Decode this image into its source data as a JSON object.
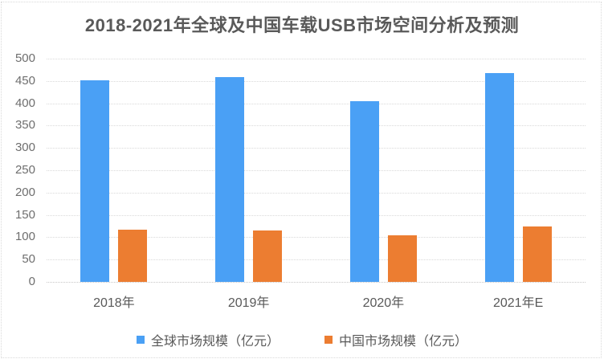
{
  "chart_data": {
    "type": "bar",
    "title": "2018-2021年全球及中国车载USB市场空间分析及预测",
    "categories": [
      "2018年",
      "2019年",
      "2020年",
      "2021年E"
    ],
    "series": [
      {
        "id": "global",
        "name": "全球市场规模（亿元）",
        "color": "#4AA0F5",
        "values": [
          452,
          459,
          405,
          468
        ]
      },
      {
        "id": "china",
        "name": "中国市场规模（亿元）",
        "color": "#EC7D31",
        "values": [
          117,
          115,
          104,
          124
        ]
      }
    ],
    "xlabel": "",
    "ylabel": "",
    "ylim": [
      0,
      500
    ],
    "ytick_step": 50,
    "yticks": [
      0,
      50,
      100,
      150,
      200,
      250,
      300,
      350,
      400,
      450,
      500
    ],
    "grid": true,
    "gridline_style": "dotted",
    "legend_position": "bottom"
  },
  "colors": {
    "background": "#ffffff",
    "border": "#d9d9d9",
    "title_text": "#595959",
    "axis_text": "#6e6e6e",
    "gridline": "#d9d9d9",
    "series_global": "#4AA0F5",
    "series_china": "#EC7D31"
  }
}
